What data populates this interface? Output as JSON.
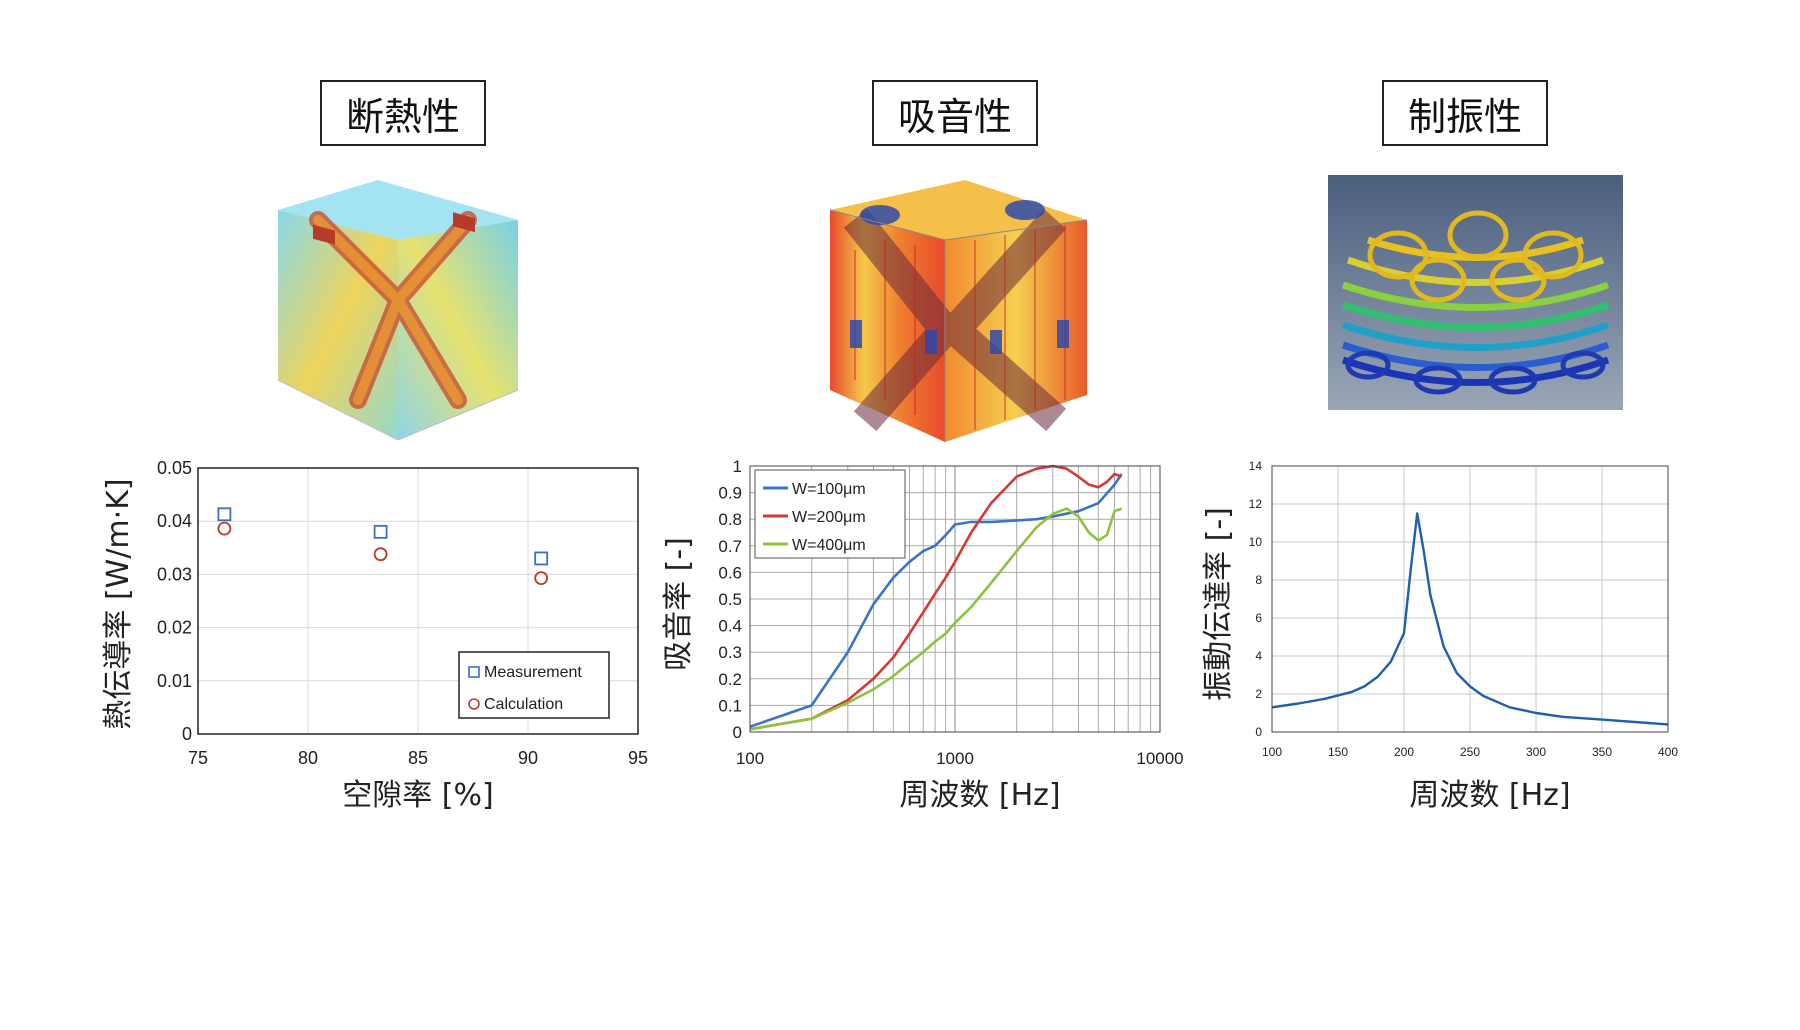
{
  "panels": [
    {
      "title": "断熱性"
    },
    {
      "title": "吸音性"
    },
    {
      "title": "制振性"
    }
  ],
  "chart_data": [
    {
      "type": "scatter",
      "xlabel": "空隙率 [%]",
      "ylabel": "熱伝導率 [W/m·K]",
      "xlim": [
        75,
        95
      ],
      "ylim": [
        0,
        0.05
      ],
      "xticks": [
        "75",
        "80",
        "85",
        "90",
        "95"
      ],
      "yticks": [
        "0",
        "0.01",
        "0.02",
        "0.03",
        "0.04",
        "0.05"
      ],
      "grid": true,
      "legend": "bottom-right",
      "series": [
        {
          "name": "Measurement",
          "marker": "square",
          "color": "#3a6fc4",
          "x": [
            76.2,
            83.3,
            90.6
          ],
          "y": [
            0.0413,
            0.038,
            0.033
          ]
        },
        {
          "name": "Calculation",
          "marker": "circle",
          "color": "#c0392b",
          "x": [
            76.2,
            83.3,
            90.6
          ],
          "y": [
            0.0386,
            0.0338,
            0.0293
          ]
        }
      ]
    },
    {
      "type": "line",
      "xlabel": "周波数 [Hz]",
      "ylabel": "吸音率 [-]",
      "xscale": "log",
      "xlim": [
        100,
        10000
      ],
      "ylim": [
        0,
        1
      ],
      "xticks": [
        "100",
        "1000",
        "10000"
      ],
      "yticks": [
        "0",
        "0.1",
        "0.2",
        "0.3",
        "0.4",
        "0.5",
        "0.6",
        "0.7",
        "0.8",
        "0.9",
        "1"
      ],
      "grid": true,
      "legend": "top-left",
      "series": [
        {
          "name": "W=100μm",
          "color": "#3c73c6",
          "x": [
            100,
            200,
            300,
            400,
            500,
            600,
            700,
            800,
            900,
            1000,
            1200,
            1500,
            2000,
            2500,
            3000,
            4000,
            5000,
            6000,
            6500
          ],
          "y": [
            0.02,
            0.1,
            0.3,
            0.48,
            0.58,
            0.64,
            0.68,
            0.7,
            0.74,
            0.78,
            0.79,
            0.79,
            0.795,
            0.8,
            0.81,
            0.83,
            0.86,
            0.93,
            0.97
          ]
        },
        {
          "name": "W=200μm",
          "color": "#d23a32",
          "x": [
            100,
            200,
            300,
            400,
            500,
            600,
            700,
            800,
            900,
            1000,
            1200,
            1500,
            2000,
            2500,
            3000,
            3500,
            4000,
            4500,
            5000,
            5500,
            6000,
            6500
          ],
          "y": [
            0.01,
            0.05,
            0.12,
            0.2,
            0.28,
            0.37,
            0.45,
            0.52,
            0.58,
            0.64,
            0.75,
            0.86,
            0.96,
            0.99,
            1.0,
            0.99,
            0.96,
            0.93,
            0.92,
            0.94,
            0.97,
            0.96
          ]
        },
        {
          "name": "W=400μm",
          "color": "#8dc23f",
          "x": [
            100,
            200,
            300,
            400,
            500,
            600,
            700,
            800,
            900,
            1000,
            1200,
            1500,
            2000,
            2500,
            3000,
            3500,
            4000,
            4500,
            5000,
            5500,
            6000,
            6500
          ],
          "y": [
            0.01,
            0.05,
            0.11,
            0.16,
            0.21,
            0.26,
            0.3,
            0.34,
            0.37,
            0.41,
            0.47,
            0.56,
            0.68,
            0.77,
            0.82,
            0.84,
            0.81,
            0.75,
            0.72,
            0.74,
            0.83,
            0.84
          ]
        }
      ]
    },
    {
      "type": "line",
      "xlabel": "周波数 [Hz]",
      "ylabel": "振動伝達率 [-]",
      "xlim": [
        100,
        400
      ],
      "ylim": [
        0,
        14
      ],
      "xticks": [
        "100",
        "150",
        "200",
        "250",
        "300",
        "350",
        "400"
      ],
      "yticks": [
        "0",
        "2",
        "4",
        "6",
        "8",
        "10",
        "12",
        "14"
      ],
      "grid": true,
      "series": [
        {
          "color": "#1f5fad",
          "x": [
            100,
            120,
            140,
            160,
            170,
            180,
            190,
            200,
            205,
            210,
            215,
            220,
            230,
            240,
            250,
            260,
            280,
            300,
            320,
            350,
            380,
            400
          ],
          "y": [
            1.3,
            1.5,
            1.75,
            2.1,
            2.4,
            2.9,
            3.7,
            5.2,
            8.5,
            11.5,
            9.5,
            7.2,
            4.5,
            3.1,
            2.4,
            1.9,
            1.3,
            1.0,
            0.8,
            0.65,
            0.5,
            0.4
          ]
        }
      ]
    }
  ]
}
